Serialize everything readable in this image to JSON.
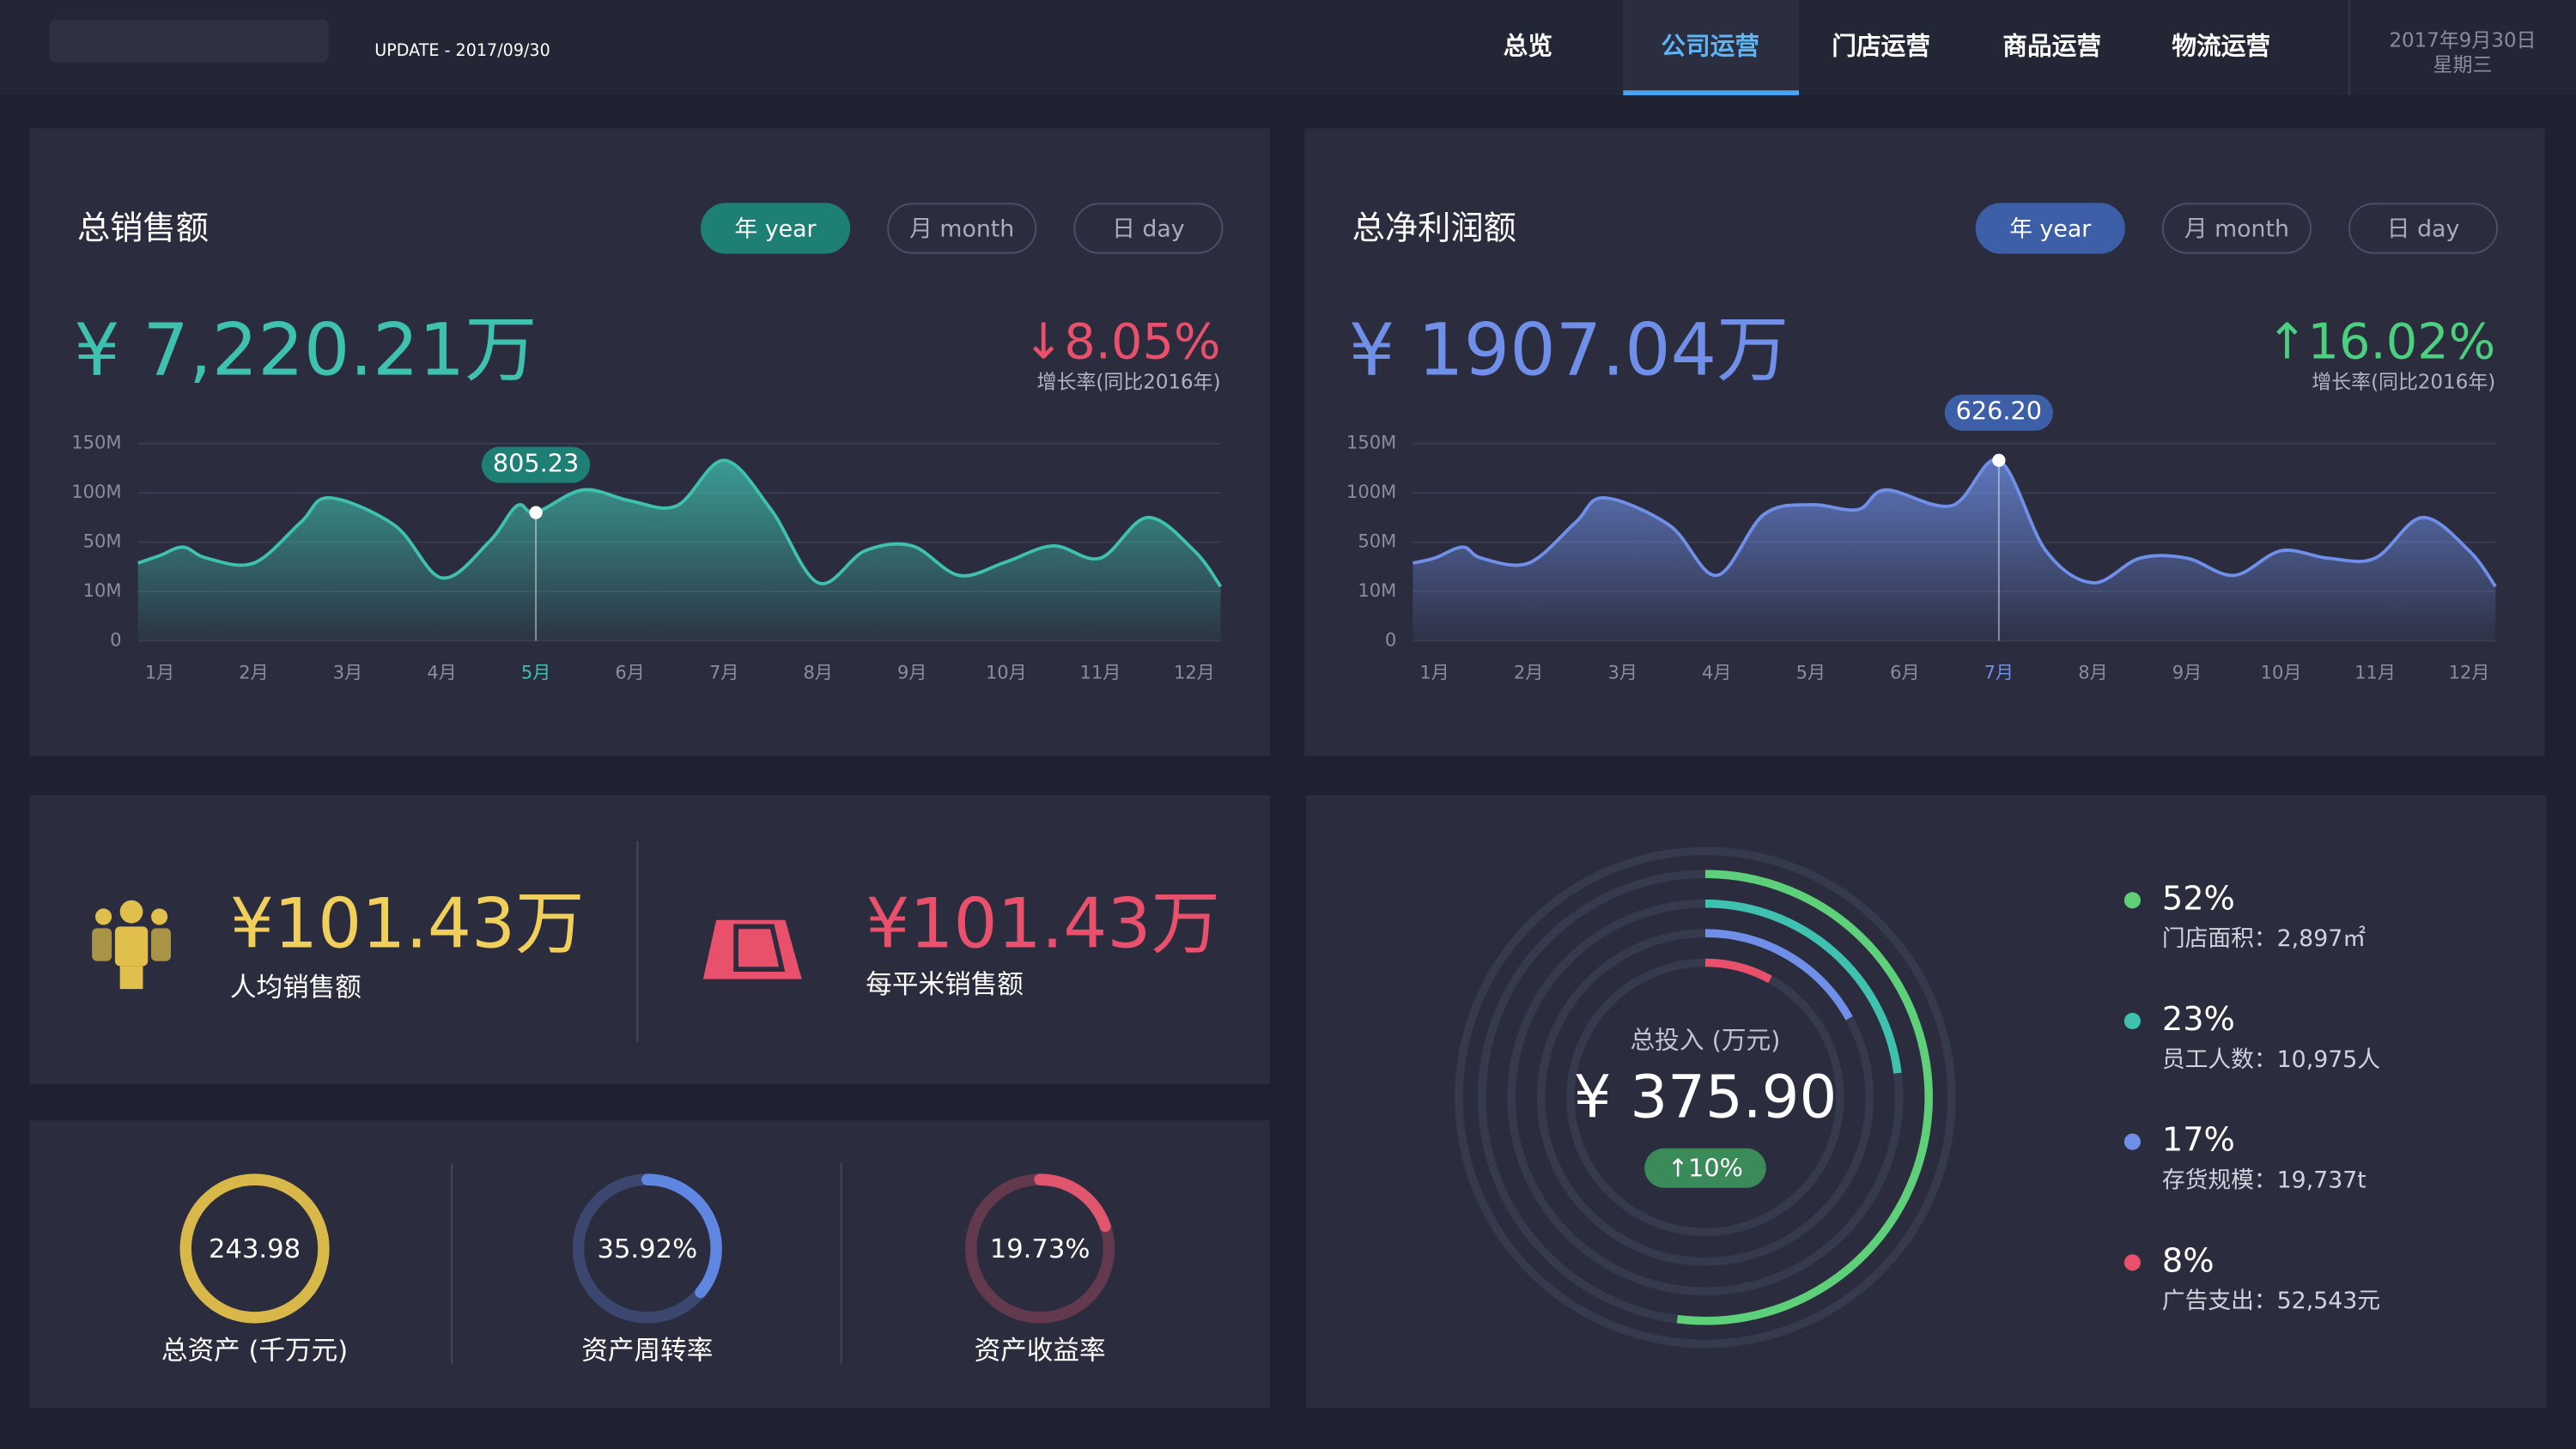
{
  "header": {
    "update": "UPDATE - 2017/09/30",
    "nav": [
      "总览",
      "公司运营",
      "门店运营",
      "商品运营",
      "物流运营"
    ],
    "date": "2017年9月30日",
    "weekday": "星期三"
  },
  "kpis": [
    {
      "value": "¥101.43万",
      "label": "人均销售额"
    },
    {
      "value": "¥101.43万",
      "label": "每平米销售额"
    }
  ],
  "chart_data": [
    {
      "type": "area",
      "title": "总销售额",
      "buttons": [
        "年 year",
        "月 month",
        "日 day"
      ],
      "total": "¥ 7,220.21万",
      "change": "↓8.05%",
      "change_label": "增长率(同比2016年)",
      "color": "#3fc1b0",
      "x": [
        0.77,
        1,
        1.25,
        1.5,
        2,
        2.5,
        2.8,
        3.5,
        4,
        4.5,
        4.8,
        5,
        5.5,
        6,
        6.5,
        7,
        7.5,
        8,
        8.5,
        9,
        9.5,
        10,
        10.5,
        11,
        11.5,
        12,
        12.28
      ],
      "values": [
        33,
        39,
        46,
        37,
        33,
        70,
        95,
        67,
        21,
        50,
        87,
        80,
        103,
        92,
        87,
        133,
        83,
        17,
        43,
        47,
        23,
        34,
        47,
        37,
        75,
        43,
        14
      ],
      "xlim": [
        0.77,
        12.28
      ],
      "xticks": [
        {
          "value": 1,
          "label": "1月"
        },
        {
          "value": 2,
          "label": "2月"
        },
        {
          "value": 3,
          "label": "3月"
        },
        {
          "value": 4,
          "label": "4月"
        },
        {
          "value": 5,
          "label": "5月"
        },
        {
          "value": 6,
          "label": "6月"
        },
        {
          "value": 7,
          "label": "7月"
        },
        {
          "value": 8,
          "label": "8月"
        },
        {
          "value": 9,
          "label": "9月"
        },
        {
          "value": 10,
          "label": "10月"
        },
        {
          "value": 11,
          "label": "11月"
        },
        {
          "value": 12,
          "label": "12月"
        }
      ],
      "ylim": [
        0,
        150
      ],
      "yticks": [
        0,
        {
          "value": 10,
          "label": "10M"
        },
        {
          "value": 50,
          "label": "50M"
        },
        {
          "value": 100,
          "label": "100M"
        },
        {
          "value": 150,
          "label": "150M"
        }
      ],
      "grid": true,
      "annotation": {
        "x": 5,
        "label": "805.23"
      }
    },
    {
      "type": "area",
      "title": "总净利润额",
      "buttons": [
        "年 year",
        "月 month",
        "日 day"
      ],
      "total": "¥ 1907.04万",
      "change": "↑16.02%",
      "change_label": "增长率(同比2016年)",
      "color": "#6f8fe8",
      "x": [
        0.77,
        1,
        1.3,
        1.5,
        2,
        2.5,
        2.8,
        3.5,
        4,
        4.5,
        5,
        5.5,
        5.8,
        6.5,
        7,
        7.5,
        8,
        8.5,
        9,
        9.5,
        10,
        10.5,
        11,
        11.5,
        12,
        12.28
      ],
      "values": [
        33,
        37,
        46,
        37,
        33,
        70,
        95,
        67,
        23,
        78,
        88,
        83,
        103,
        87,
        133,
        43,
        17,
        37,
        37,
        23,
        43,
        37,
        37,
        75,
        43,
        14
      ],
      "xlim": [
        0.77,
        12.28
      ],
      "xticks": [
        {
          "value": 1,
          "label": "1月"
        },
        {
          "value": 2,
          "label": "2月"
        },
        {
          "value": 3,
          "label": "3月"
        },
        {
          "value": 4,
          "label": "4月"
        },
        {
          "value": 5,
          "label": "5月"
        },
        {
          "value": 6,
          "label": "6月"
        },
        {
          "value": 7,
          "label": "7月"
        },
        {
          "value": 8,
          "label": "8月"
        },
        {
          "value": 9,
          "label": "9月"
        },
        {
          "value": 10,
          "label": "10月"
        },
        {
          "value": 11,
          "label": "11月"
        },
        {
          "value": 12,
          "label": "12月"
        }
      ],
      "ylim": [
        0,
        150
      ],
      "yticks": [
        0,
        {
          "value": 10,
          "label": "10M"
        },
        {
          "value": 50,
          "label": "50M"
        },
        {
          "value": 100,
          "label": "100M"
        },
        {
          "value": 150,
          "label": "150M"
        }
      ],
      "grid": true,
      "annotation": {
        "x": 7,
        "label": "626.20"
      }
    },
    {
      "type": "gauge",
      "items": [
        {
          "label": "总资产 (千万元)",
          "value": 243.98,
          "color": "#d9b84a"
        },
        {
          "label": "资产周转率",
          "value": 35.92,
          "value_label": "35.92%",
          "color": "#5f86e0"
        },
        {
          "label": "资产收益率",
          "value": 19.73,
          "value_label": "19.73%",
          "color": "#e0566f"
        }
      ]
    },
    {
      "type": "rings",
      "title": "总投入 (万元)",
      "total": "¥ 375.90",
      "change": "↑10%",
      "categories": [
        "门店面积：2,897㎡",
        "员工人数：10,975人",
        "存货规模：19,737t",
        "广告支出：52,543元"
      ],
      "values": [
        52,
        23,
        17,
        8
      ],
      "value_labels": [
        "52%",
        "23%",
        "17%",
        "8%"
      ],
      "colors": [
        "#5ed07a",
        "#3fc1b0",
        "#6f8fe8",
        "#e8506b"
      ]
    }
  ]
}
